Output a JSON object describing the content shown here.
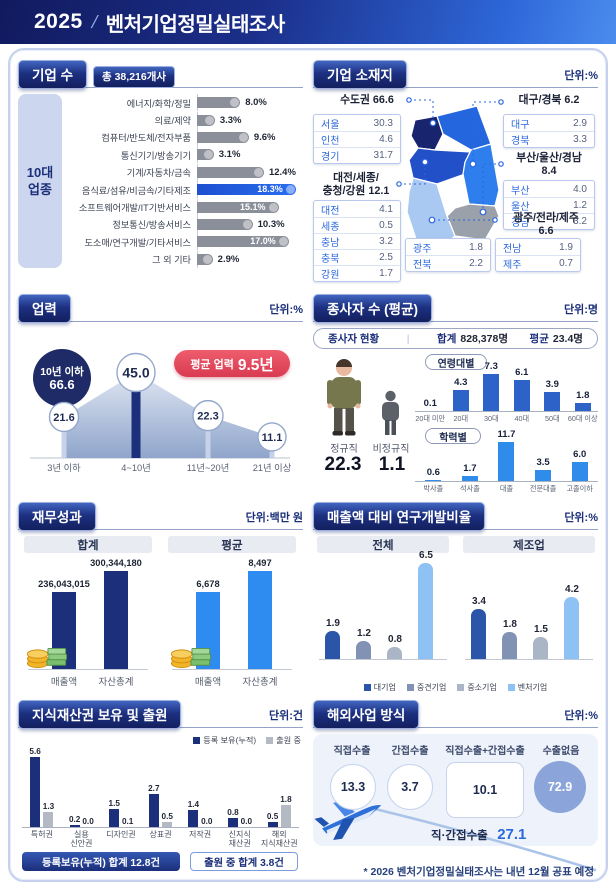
{
  "header": {
    "year": "2025",
    "slash": "/",
    "title": "벤처기업정밀실태조사"
  },
  "colors": {
    "brand_navy": "#1b2f7a",
    "accent_blue": "#2b67dd",
    "highlight_bar": "#1d55d6",
    "bar_gray": "#8a8f99",
    "age_bar": "#2d63c8",
    "edu_bar": "#2f8ceb",
    "fin_total": "#1b2f7a",
    "fin_avg": "#2e8bf0",
    "rnd_series": [
      "#2b55a8",
      "#8192b4",
      "#aab6c6",
      "#8ec2f4"
    ],
    "ip_owned": "#1b2f7a",
    "ip_pending": "#b4bac4",
    "avg_pill_red": "#e8495a",
    "no_export_circle": "#8ba4d9",
    "map": {
      "sudogwon": "#18246e",
      "gangwon": "#2466dd",
      "chungcheong": "#2250c8",
      "gyeongbuk": "#2e7eee",
      "gyeongnam": "#9aa1ab",
      "jeolla": "#a9c9f2",
      "jeju": "#a9c9f2"
    }
  },
  "company": {
    "title": "기업 수",
    "badge": "총 38,216개사",
    "group_label_lines": [
      "10대",
      "업종"
    ]
  },
  "location": {
    "title": "기업 소재지",
    "unit": "단위:%",
    "groups": [
      {
        "id": "sudogwon",
        "label_lines": [
          "수도권 66.6"
        ],
        "rows": [
          [
            "서울",
            "30.3"
          ],
          [
            "인천",
            "4.6"
          ],
          [
            "경기",
            "31.7"
          ]
        ]
      },
      {
        "id": "daegu",
        "label_lines": [
          "대구/경북 6.2"
        ],
        "rows": [
          [
            "대구",
            "2.9"
          ],
          [
            "경북",
            "3.3"
          ]
        ]
      },
      {
        "id": "daejeon",
        "label_lines": [
          "대전/세종/",
          "충청/강원 12.1"
        ],
        "rows": [
          [
            "대전",
            "4.1"
          ],
          [
            "세종",
            "0.5"
          ],
          [
            "충남",
            "3.2"
          ],
          [
            "충북",
            "2.5"
          ],
          [
            "강원",
            "1.7"
          ]
        ]
      },
      {
        "id": "busan",
        "label_lines": [
          "부산/울산/경남",
          "8.4"
        ],
        "rows": [
          [
            "부산",
            "4.0"
          ],
          [
            "울산",
            "1.2"
          ],
          [
            "경남",
            "3.2"
          ]
        ]
      },
      {
        "id": "gwangju",
        "label_lines": [
          "광주/전라/제주",
          "6.6"
        ],
        "rows": [
          [
            "광주",
            "1.8"
          ],
          [
            "전북",
            "2.2"
          ],
          [
            "전남",
            "1.9"
          ],
          [
            "제주",
            "0.7"
          ]
        ]
      }
    ]
  },
  "age": {
    "title": "업력",
    "unit": "단위:%",
    "avg_prefix": "평균 업력",
    "avg_value": "9.5년",
    "under10_label": "10년 이하",
    "under10_value": "66.6"
  },
  "employees": {
    "title": "종사자 수 (평균)",
    "unit": "단위:명",
    "status_label": "종사자 현황",
    "divider": "|",
    "total_label": "합계",
    "total_value": "828,378명",
    "avg_label": "평균",
    "avg_value": "23.4명",
    "regular_label": "정규직",
    "regular_value": "22.3",
    "irregular_label": "비정규직",
    "irregular_value": "1.1"
  },
  "financial": {
    "title": "재무성과",
    "unit": "단위:백만 원"
  },
  "rnd": {
    "title": "매출액 대비 연구개발비율",
    "unit": "단위:%"
  },
  "ip": {
    "title": "지식재산권 보유 및 출원",
    "unit": "단위:건",
    "total_owned": "등록보유(누적) 합계 12.8건",
    "total_pending": "출원 중 합계 3.8건"
  },
  "overseas": {
    "title": "해외사업 방식",
    "unit": "단위:%",
    "items": [
      {
        "label": "직접수출",
        "value": "13.3"
      },
      {
        "label": "간접수출",
        "value": "3.7"
      },
      {
        "label": "직접수출+간접수출",
        "value": "10.1"
      },
      {
        "label": "수출없음",
        "value": "72.9"
      }
    ],
    "summary_label": "직·간접수출",
    "summary_value": "27.1"
  },
  "footnote": "* 2026 벤처기업정밀실태조사는 내년 12월 공표 예정",
  "chart_data": [
    {
      "id": "company_industries",
      "type": "bar",
      "orientation": "horizontal",
      "unit": "%",
      "categories": [
        "에너지/화학/정밀",
        "의료/제약",
        "컴퓨터/반도체/전자부품",
        "통신기기/방송기기",
        "기계/자동차/금속",
        "음식료/섬유/비금속/기타제조",
        "소프트웨어개발/IT기반서비스",
        "정보통신/방송서비스",
        "도소매/연구개발/기타서비스",
        "그 외 기타"
      ],
      "values": [
        8.0,
        3.3,
        9.6,
        3.1,
        12.4,
        18.3,
        15.1,
        10.3,
        17.0,
        2.9
      ],
      "values_display": [
        "8.0%",
        "3.3%",
        "9.6%",
        "3.1%",
        "12.4%",
        "18.3%",
        "15.1%",
        "10.3%",
        "17.0%",
        "2.9%"
      ],
      "highlight": "음식료/섬유/비금속/기타제조"
    },
    {
      "id": "business_age",
      "type": "area",
      "unit": "%",
      "categories": [
        "3년 이하",
        "4~10년",
        "11년~20년",
        "21년 이상"
      ],
      "values": [
        21.6,
        45.0,
        22.3,
        11.1
      ]
    },
    {
      "id": "employees_age",
      "type": "bar",
      "title": "연령대별",
      "unit": "명",
      "categories": [
        "20대 미만",
        "20대",
        "30대",
        "40대",
        "50대",
        "60대 이상"
      ],
      "values": [
        0.1,
        4.3,
        7.3,
        6.1,
        3.9,
        1.8
      ]
    },
    {
      "id": "employees_edu",
      "type": "bar",
      "title": "학력별",
      "unit": "명",
      "categories": [
        "박사졸",
        "석사졸",
        "대졸",
        "전문대졸",
        "고졸이하"
      ],
      "values": [
        0.6,
        1.7,
        11.7,
        3.5,
        6.0
      ]
    },
    {
      "id": "financial",
      "type": "bar",
      "unit": "백만 원",
      "groups": [
        {
          "label": "합계",
          "categories": [
            "매출액",
            "자산총계"
          ],
          "values": [
            236043015,
            300344180
          ],
          "values_display": [
            "236,043,015",
            "300,344,180"
          ]
        },
        {
          "label": "평균",
          "categories": [
            "매출액",
            "자산총계"
          ],
          "values": [
            6678,
            8497
          ],
          "values_display": [
            "6,678",
            "8,497"
          ]
        }
      ]
    },
    {
      "id": "rnd_ratio",
      "type": "bar",
      "unit": "%",
      "legend": [
        "대기업",
        "중견기업",
        "중소기업",
        "벤처기업"
      ],
      "groups": [
        {
          "label": "전체",
          "values": [
            1.9,
            1.2,
            0.8,
            6.5
          ]
        },
        {
          "label": "제조업",
          "values": [
            3.4,
            1.8,
            1.5,
            4.2
          ]
        }
      ]
    },
    {
      "id": "ip",
      "type": "bar",
      "unit": "건",
      "legend": [
        "등록 보유(누적)",
        "출원 중"
      ],
      "categories": [
        "특허권",
        "실용신안권",
        "디자인권",
        "상표권",
        "저작권",
        "신지식재산권",
        "해외지식재산권"
      ],
      "category_lines": [
        [
          "특허권"
        ],
        [
          "실용",
          "신안권"
        ],
        [
          "디자인권"
        ],
        [
          "상표권"
        ],
        [
          "저작권"
        ],
        [
          "신지식",
          "재산권"
        ],
        [
          "해외",
          "지식재산권"
        ]
      ],
      "series": [
        {
          "name": "등록 보유(누적)",
          "values": [
            5.6,
            0.2,
            1.5,
            2.7,
            1.4,
            0.8,
            0.5
          ]
        },
        {
          "name": "출원 중",
          "values": [
            1.3,
            0.0,
            0.1,
            0.5,
            0.0,
            0.0,
            1.8
          ]
        }
      ]
    }
  ]
}
